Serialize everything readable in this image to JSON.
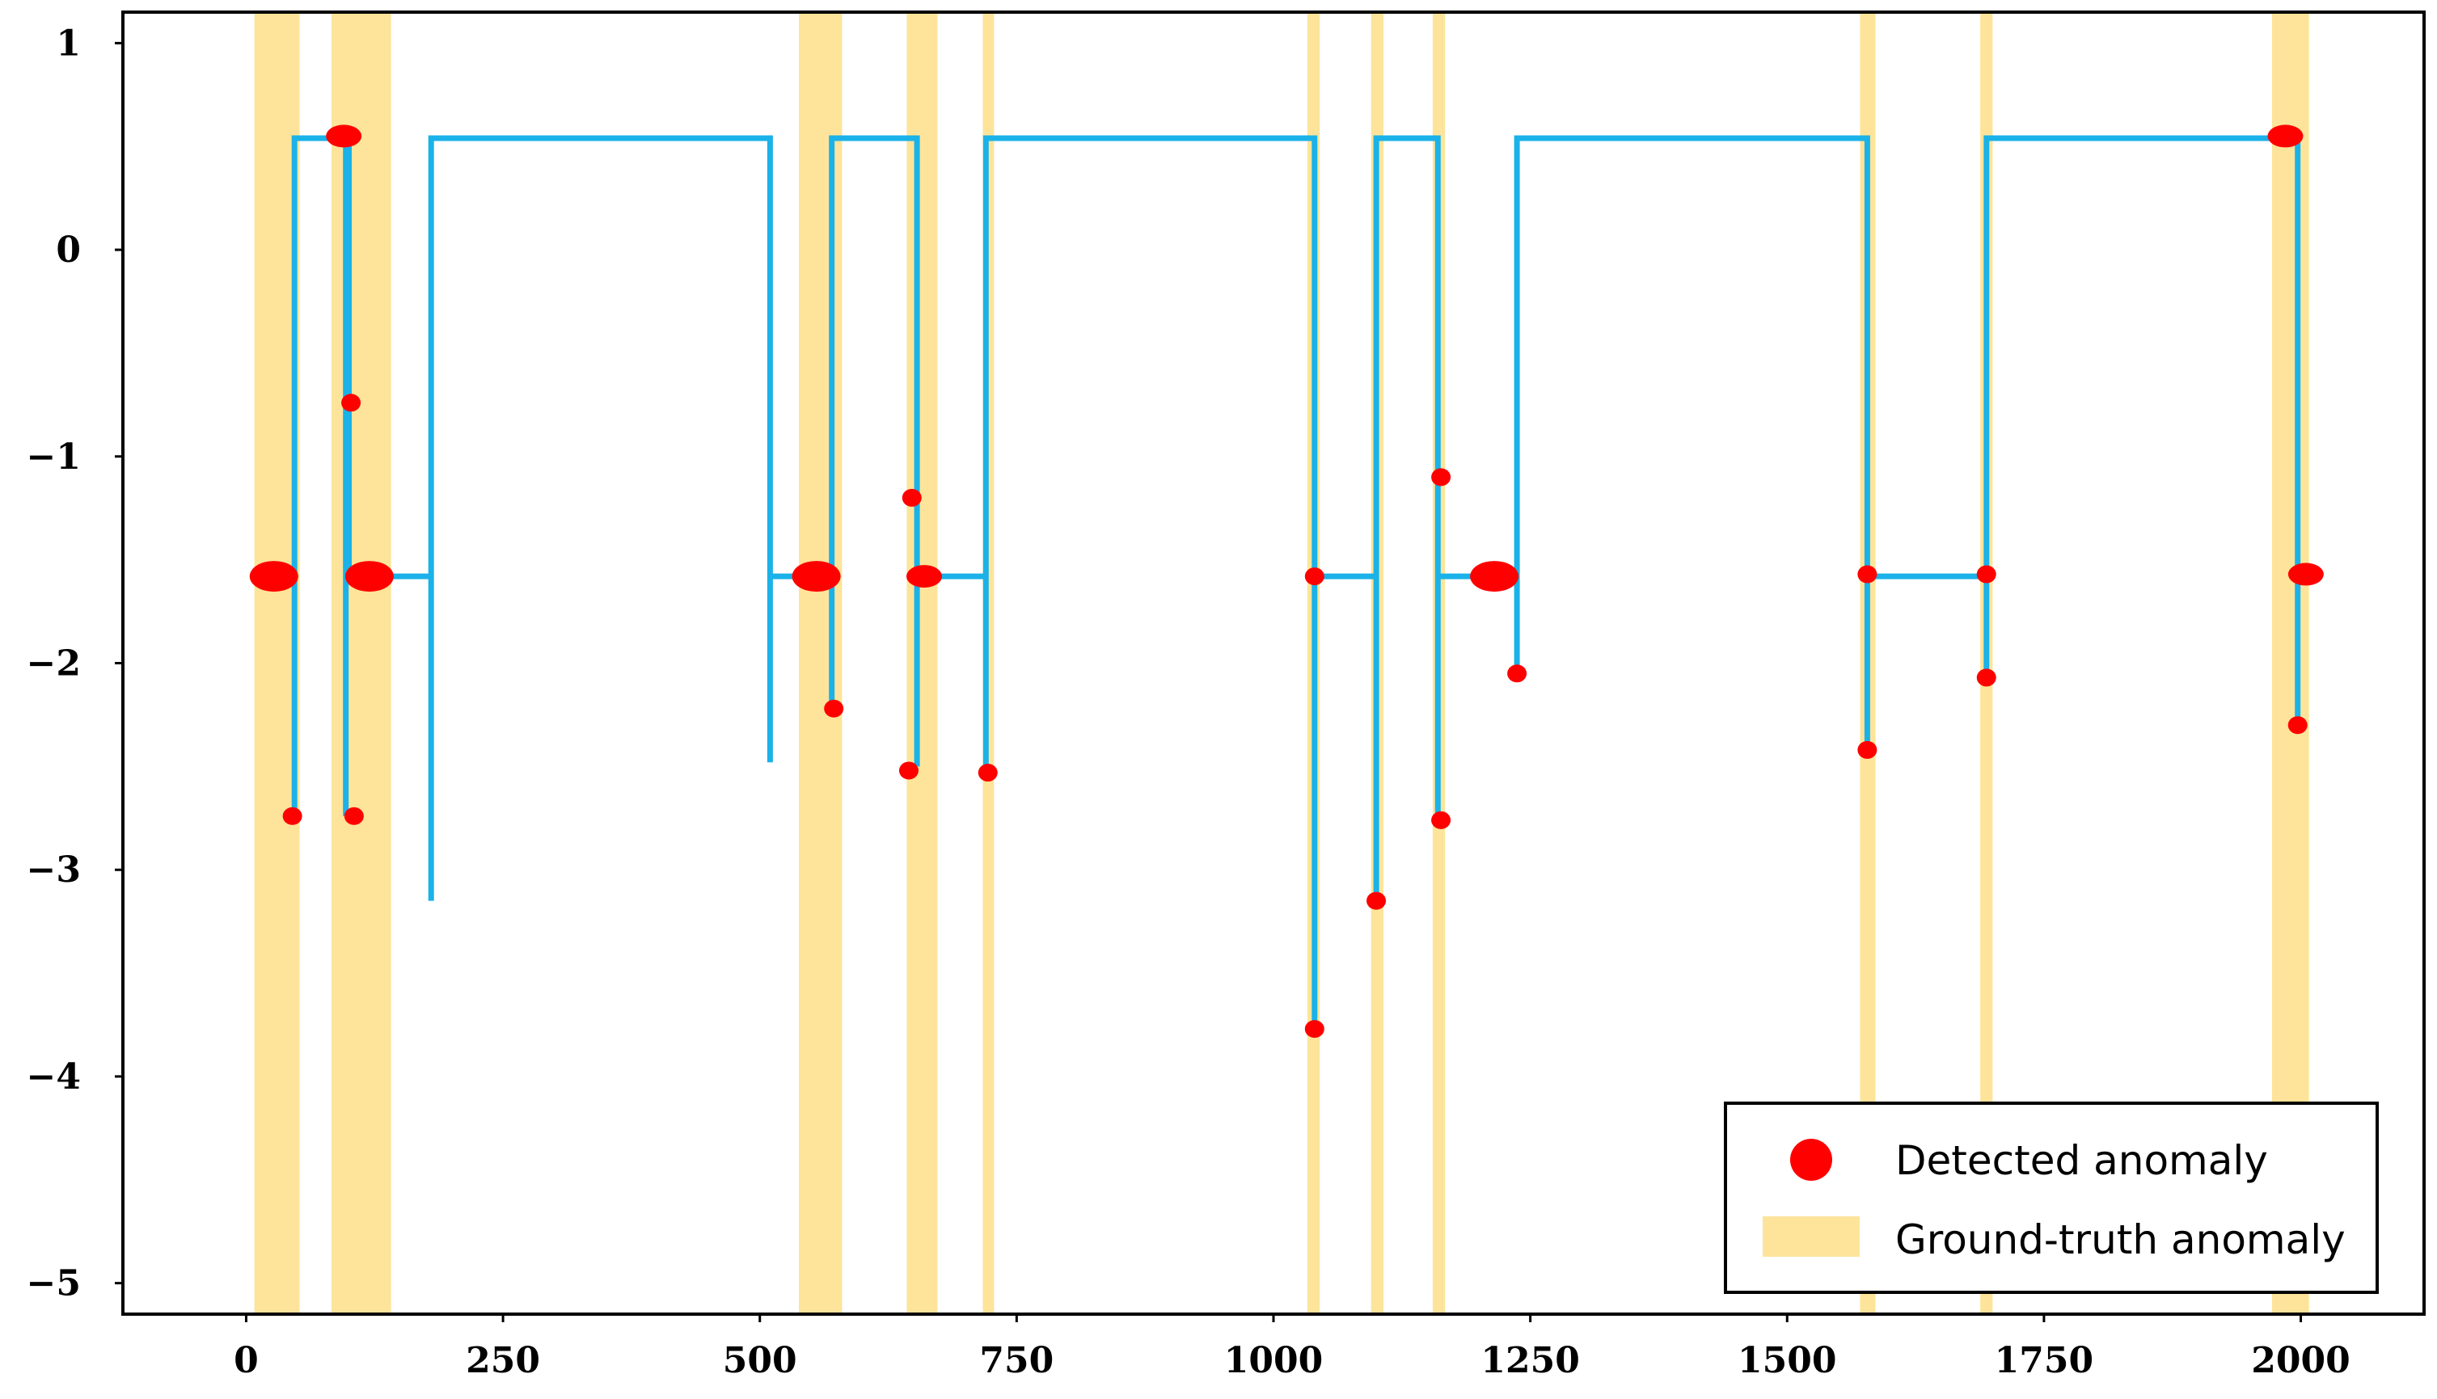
{
  "chart_data": {
    "type": "line",
    "title": "",
    "xlabel": "",
    "ylabel": "",
    "xlim": [
      -120,
      2120
    ],
    "ylim": [
      -5.15,
      1.15
    ],
    "x_ticks": [
      0,
      250,
      500,
      750,
      1000,
      1250,
      1500,
      1750,
      2000
    ],
    "x_tick_labels": [
      "0",
      "250",
      "500",
      "750",
      "1000",
      "1250",
      "1500",
      "1750",
      "2000"
    ],
    "y_ticks": [
      1,
      0,
      -1,
      -2,
      -3,
      -4,
      -5
    ],
    "y_tick_labels": [
      "1",
      "0",
      "−1",
      "−2",
      "−3",
      "−4",
      "−5"
    ],
    "grid": false,
    "legend_position": "bottom-right",
    "colors": {
      "series": "#1ab2e8",
      "detected": "#ff0000",
      "ground_truth": "#fde49a",
      "axes": "#000000"
    },
    "series": [
      {
        "x": [
          8,
          47,
          47,
          47,
          97,
          97,
          97,
          97,
          100,
          100,
          100,
          180,
          180,
          180,
          510,
          510,
          510,
          570,
          570,
          570,
          570,
          653,
          653,
          653,
          653,
          720,
          720,
          720,
          1040,
          1040,
          1040,
          1100,
          1100,
          1100,
          1100,
          1160,
          1160,
          1160,
          1160,
          1237,
          1237,
          1237,
          1578,
          1578,
          1578,
          1694,
          1694,
          1694,
          1694,
          1997,
          1997,
          1997
        ],
        "y": [
          -1.58,
          -1.58,
          -2.74,
          0.54,
          0.54,
          -2.74,
          0.54,
          0.54,
          0.54,
          -1.58,
          -1.58,
          -1.58,
          -3.15,
          0.54,
          0.54,
          -2.48,
          -1.58,
          -1.58,
          -2.22,
          0.54,
          0.54,
          0.54,
          -2.5,
          -1.58,
          -1.58,
          -1.58,
          -2.5,
          0.54,
          0.54,
          -3.77,
          -1.58,
          -1.58,
          -3.15,
          0.54,
          0.54,
          0.54,
          -2.76,
          -1.58,
          -1.58,
          -1.58,
          -2.05,
          0.54,
          0.54,
          -2.42,
          -1.58,
          -1.58,
          -2.07,
          0.54,
          0.54,
          0.54,
          -2.3,
          -2.3
        ]
      }
    ],
    "detected_anomalies": [
      {
        "x": 27,
        "y": -1.58,
        "size": "large"
      },
      {
        "x": 45,
        "y": -2.74,
        "size": "small"
      },
      {
        "x": 95,
        "y": 0.55,
        "size": "medium"
      },
      {
        "x": 102,
        "y": -0.74,
        "size": "small"
      },
      {
        "x": 105,
        "y": -2.74,
        "size": "small"
      },
      {
        "x": 120,
        "y": -1.58,
        "size": "large"
      },
      {
        "x": 555,
        "y": -1.58,
        "size": "large"
      },
      {
        "x": 572,
        "y": -2.22,
        "size": "small"
      },
      {
        "x": 648,
        "y": -1.2,
        "size": "small"
      },
      {
        "x": 645,
        "y": -2.52,
        "size": "small"
      },
      {
        "x": 660,
        "y": -1.58,
        "size": "medium"
      },
      {
        "x": 722,
        "y": -2.53,
        "size": "small"
      },
      {
        "x": 1040,
        "y": -1.58,
        "size": "small"
      },
      {
        "x": 1040,
        "y": -3.77,
        "size": "small"
      },
      {
        "x": 1100,
        "y": -3.15,
        "size": "small"
      },
      {
        "x": 1163,
        "y": -1.1,
        "size": "small"
      },
      {
        "x": 1163,
        "y": -2.76,
        "size": "small"
      },
      {
        "x": 1215,
        "y": -1.58,
        "size": "large"
      },
      {
        "x": 1237,
        "y": -2.05,
        "size": "small"
      },
      {
        "x": 1578,
        "y": -1.57,
        "size": "small"
      },
      {
        "x": 1578,
        "y": -2.42,
        "size": "small"
      },
      {
        "x": 1694,
        "y": -1.57,
        "size": "small"
      },
      {
        "x": 1694,
        "y": -2.07,
        "size": "small"
      },
      {
        "x": 1985,
        "y": 0.55,
        "size": "medium"
      },
      {
        "x": 1997,
        "y": -2.3,
        "size": "small"
      },
      {
        "x": 2005,
        "y": -1.57,
        "size": "medium"
      }
    ],
    "ground_truth_ranges": [
      [
        8,
        52
      ],
      [
        83,
        141
      ],
      [
        538,
        580
      ],
      [
        643,
        673
      ],
      [
        717,
        728
      ],
      [
        1033,
        1045
      ],
      [
        1095,
        1107
      ],
      [
        1155,
        1167
      ],
      [
        1571,
        1586
      ],
      [
        1688,
        1700
      ],
      [
        1972,
        2008
      ]
    ],
    "legend": [
      {
        "label": "Detected anomaly",
        "kind": "marker"
      },
      {
        "label": "Ground-truth anomaly",
        "kind": "band"
      }
    ]
  }
}
